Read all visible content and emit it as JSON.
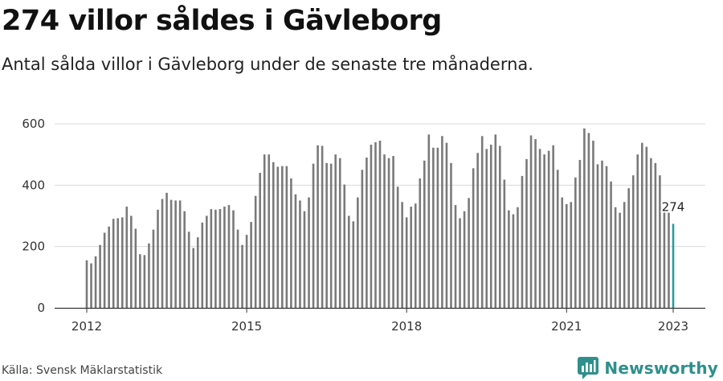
{
  "title": "274 villor såldes i Gävleborg",
  "subtitle": "Antal sålda villor i Gävleborg under de senaste tre månaderna.",
  "source": "Källa: Svensk Mäklarstatistik",
  "brand": {
    "name": "Newsworthy",
    "icon": "newsworthy-logo-icon",
    "color": "#2e8f8c"
  },
  "colors": {
    "bar": "#7a7a7a",
    "highlight": "#2a9d9a",
    "grid": "#d9d9d9",
    "axis": "#333333"
  },
  "chart_data": {
    "type": "bar",
    "title": "274 villor såldes i Gävleborg",
    "xlabel": "",
    "ylabel": "",
    "ylim": [
      0,
      600
    ],
    "yticks": [
      "0",
      "200",
      "400",
      "600"
    ],
    "xticks": [
      {
        "label": "2012",
        "index": 0
      },
      {
        "label": "2015",
        "index": 36
      },
      {
        "label": "2018",
        "index": 72
      },
      {
        "label": "2021",
        "index": 108
      },
      {
        "label": "2023",
        "index": 132
      }
    ],
    "grid": true,
    "highlight": {
      "index": 132,
      "label": "274"
    },
    "start": "2012-01",
    "values": [
      155,
      145,
      168,
      205,
      245,
      265,
      290,
      292,
      295,
      330,
      300,
      258,
      175,
      172,
      210,
      255,
      320,
      355,
      375,
      352,
      350,
      350,
      315,
      248,
      195,
      230,
      278,
      300,
      322,
      320,
      322,
      330,
      335,
      318,
      255,
      205,
      238,
      280,
      365,
      440,
      500,
      500,
      475,
      460,
      462,
      462,
      422,
      370,
      350,
      315,
      360,
      470,
      530,
      528,
      472,
      470,
      500,
      488,
      402,
      300,
      282,
      360,
      450,
      490,
      532,
      540,
      545,
      500,
      488,
      495,
      395,
      345,
      295,
      330,
      340,
      422,
      480,
      565,
      522,
      522,
      560,
      538,
      472,
      335,
      292,
      315,
      358,
      455,
      505,
      560,
      518,
      532,
      565,
      528,
      418,
      318,
      305,
      328,
      430,
      485,
      562,
      550,
      518,
      500,
      512,
      530,
      450,
      360,
      338,
      345,
      425,
      482,
      585,
      570,
      545,
      468,
      480,
      462,
      412,
      328,
      310,
      345,
      390,
      432,
      500,
      538,
      525,
      488,
      472,
      432,
      320,
      310,
      274
    ]
  }
}
